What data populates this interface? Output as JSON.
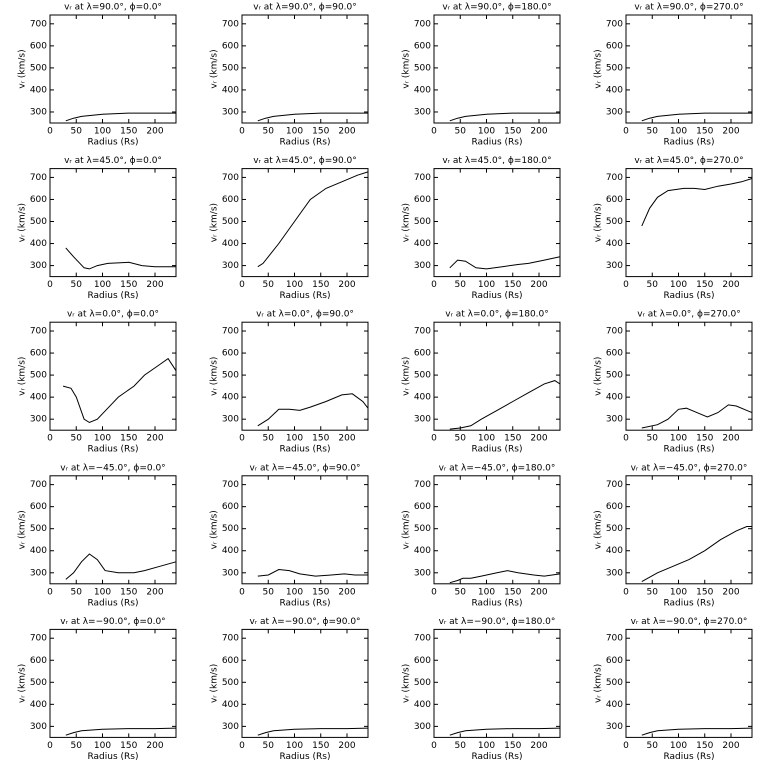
{
  "chart_data": [
    {
      "type": "line",
      "title": "vᵣ at λ=90.0°, ϕ=0.0°",
      "xlabel": "Radius (Rs)",
      "ylabel": "vᵣ (km/s)",
      "xlim": [
        0,
        240
      ],
      "ylim": [
        250,
        740
      ],
      "xticks": [
        0,
        50,
        100,
        150,
        200
      ],
      "yticks": [
        300,
        400,
        500,
        600,
        700
      ],
      "color": "#000000",
      "x": [
        30,
        45,
        60,
        100,
        150,
        200,
        240
      ],
      "values": [
        260,
        272,
        280,
        290,
        295,
        295,
        295
      ]
    },
    {
      "type": "line",
      "title": "vᵣ at λ=90.0°, ϕ=90.0°",
      "xlabel": "Radius (Rs)",
      "ylabel": "vᵣ (km/s)",
      "xlim": [
        0,
        240
      ],
      "ylim": [
        250,
        740
      ],
      "xticks": [
        0,
        50,
        100,
        150,
        200
      ],
      "yticks": [
        300,
        400,
        500,
        600,
        700
      ],
      "color": "#000000",
      "x": [
        30,
        45,
        60,
        100,
        150,
        200,
        240
      ],
      "values": [
        260,
        272,
        280,
        290,
        295,
        295,
        295
      ]
    },
    {
      "type": "line",
      "title": "vᵣ at λ=90.0°, ϕ=180.0°",
      "xlabel": "Radius (Rs)",
      "ylabel": "vᵣ (km/s)",
      "xlim": [
        0,
        240
      ],
      "ylim": [
        250,
        740
      ],
      "xticks": [
        0,
        50,
        100,
        150,
        200
      ],
      "yticks": [
        300,
        400,
        500,
        600,
        700
      ],
      "color": "#000000",
      "x": [
        30,
        45,
        60,
        100,
        150,
        200,
        240
      ],
      "values": [
        260,
        272,
        280,
        290,
        295,
        295,
        295
      ]
    },
    {
      "type": "line",
      "title": "vᵣ at λ=90.0°, ϕ=270.0°",
      "xlabel": "Radius (Rs)",
      "ylabel": "vᵣ (km/s)",
      "xlim": [
        0,
        240
      ],
      "ylim": [
        250,
        740
      ],
      "xticks": [
        0,
        50,
        100,
        150,
        200
      ],
      "yticks": [
        300,
        400,
        500,
        600,
        700
      ],
      "color": "#000000",
      "x": [
        30,
        45,
        60,
        100,
        150,
        200,
        240
      ],
      "values": [
        260,
        272,
        280,
        290,
        295,
        295,
        295
      ]
    },
    {
      "type": "line",
      "title": "vᵣ at λ=45.0°, ϕ=0.0°",
      "xlabel": "Radius (Rs)",
      "ylabel": "vᵣ (km/s)",
      "xlim": [
        0,
        240
      ],
      "ylim": [
        250,
        740
      ],
      "xticks": [
        0,
        50,
        100,
        150,
        200
      ],
      "yticks": [
        300,
        400,
        500,
        600,
        700
      ],
      "color": "#000000",
      "x": [
        30,
        45,
        65,
        75,
        90,
        110,
        150,
        175,
        200,
        240
      ],
      "values": [
        380,
        340,
        290,
        285,
        300,
        310,
        315,
        300,
        295,
        295
      ]
    },
    {
      "type": "line",
      "title": "vᵣ at λ=45.0°, ϕ=90.0°",
      "xlabel": "Radius (Rs)",
      "ylabel": "vᵣ (km/s)",
      "xlim": [
        0,
        240
      ],
      "ylim": [
        250,
        740
      ],
      "xticks": [
        0,
        50,
        100,
        150,
        200
      ],
      "yticks": [
        300,
        400,
        500,
        600,
        700
      ],
      "color": "#000000",
      "x": [
        30,
        40,
        70,
        100,
        130,
        160,
        190,
        220,
        240
      ],
      "values": [
        295,
        310,
        400,
        500,
        600,
        650,
        680,
        710,
        725
      ]
    },
    {
      "type": "line",
      "title": "vᵣ at λ=45.0°, ϕ=180.0°",
      "xlabel": "Radius (Rs)",
      "ylabel": "vᵣ (km/s)",
      "xlim": [
        0,
        240
      ],
      "ylim": [
        250,
        740
      ],
      "xticks": [
        0,
        50,
        100,
        150,
        200
      ],
      "yticks": [
        300,
        400,
        500,
        600,
        700
      ],
      "color": "#000000",
      "x": [
        30,
        45,
        60,
        80,
        100,
        130,
        160,
        180,
        210,
        240
      ],
      "values": [
        290,
        325,
        320,
        290,
        285,
        295,
        305,
        310,
        325,
        340
      ]
    },
    {
      "type": "line",
      "title": "vᵣ at λ=45.0°, ϕ=270.0°",
      "xlabel": "Radius (Rs)",
      "ylabel": "vᵣ (km/s)",
      "xlim": [
        0,
        240
      ],
      "ylim": [
        250,
        740
      ],
      "xticks": [
        0,
        50,
        100,
        150,
        200
      ],
      "yticks": [
        300,
        400,
        500,
        600,
        700
      ],
      "color": "#000000",
      "x": [
        30,
        45,
        60,
        80,
        110,
        130,
        150,
        175,
        200,
        220,
        240
      ],
      "values": [
        480,
        560,
        610,
        640,
        650,
        650,
        645,
        660,
        670,
        680,
        695
      ]
    },
    {
      "type": "line",
      "title": "vᵣ at λ=0.0°, ϕ=0.0°",
      "xlabel": "Radius (Rs)",
      "ylabel": "vᵣ (km/s)",
      "xlim": [
        0,
        240
      ],
      "ylim": [
        250,
        740
      ],
      "xticks": [
        0,
        50,
        100,
        150,
        200
      ],
      "yticks": [
        300,
        400,
        500,
        600,
        700
      ],
      "color": "#000000",
      "x": [
        25,
        40,
        50,
        65,
        75,
        90,
        110,
        130,
        160,
        180,
        210,
        225,
        240
      ],
      "values": [
        450,
        440,
        400,
        300,
        285,
        300,
        350,
        400,
        450,
        500,
        550,
        575,
        520
      ]
    },
    {
      "type": "line",
      "title": "vᵣ at λ=0.0°, ϕ=90.0°",
      "xlabel": "Radius (Rs)",
      "ylabel": "vᵣ (km/s)",
      "xlim": [
        0,
        240
      ],
      "ylim": [
        250,
        740
      ],
      "xticks": [
        0,
        50,
        100,
        150,
        200
      ],
      "yticks": [
        300,
        400,
        500,
        600,
        700
      ],
      "color": "#000000",
      "x": [
        30,
        50,
        70,
        90,
        110,
        130,
        160,
        190,
        210,
        230,
        240
      ],
      "values": [
        270,
        300,
        345,
        345,
        340,
        355,
        380,
        410,
        415,
        380,
        350
      ]
    },
    {
      "type": "line",
      "title": "vᵣ at λ=0.0°, ϕ=180.0°",
      "xlabel": "Radius (Rs)",
      "ylabel": "vᵣ (km/s)",
      "xlim": [
        0,
        240
      ],
      "ylim": [
        250,
        740
      ],
      "xticks": [
        0,
        50,
        100,
        150,
        200
      ],
      "yticks": [
        300,
        400,
        500,
        600,
        700
      ],
      "color": "#000000",
      "x": [
        30,
        50,
        70,
        90,
        120,
        150,
        180,
        210,
        230,
        240
      ],
      "values": [
        255,
        260,
        270,
        300,
        340,
        380,
        420,
        460,
        475,
        460
      ]
    },
    {
      "type": "line",
      "title": "vᵣ at λ=0.0°, ϕ=270.0°",
      "xlabel": "Radius (Rs)",
      "ylabel": "vᵣ (km/s)",
      "xlim": [
        0,
        240
      ],
      "ylim": [
        250,
        740
      ],
      "xticks": [
        0,
        50,
        100,
        150,
        200
      ],
      "yticks": [
        300,
        400,
        500,
        600,
        700
      ],
      "color": "#000000",
      "x": [
        30,
        60,
        80,
        100,
        115,
        135,
        155,
        175,
        195,
        210,
        230,
        240
      ],
      "values": [
        260,
        275,
        300,
        345,
        350,
        330,
        310,
        330,
        365,
        360,
        340,
        330
      ]
    },
    {
      "type": "line",
      "title": "vᵣ at λ=−45.0°, ϕ=0.0°",
      "xlabel": "Radius (Rs)",
      "ylabel": "vᵣ (km/s)",
      "xlim": [
        0,
        240
      ],
      "ylim": [
        250,
        740
      ],
      "xticks": [
        0,
        50,
        100,
        150,
        200
      ],
      "yticks": [
        300,
        400,
        500,
        600,
        700
      ],
      "color": "#000000",
      "x": [
        30,
        45,
        60,
        75,
        90,
        105,
        130,
        160,
        180,
        210,
        240
      ],
      "values": [
        270,
        300,
        350,
        385,
        360,
        310,
        300,
        300,
        310,
        330,
        350
      ]
    },
    {
      "type": "line",
      "title": "vᵣ at λ=−45.0°, ϕ=90.0°",
      "xlabel": "Radius (Rs)",
      "ylabel": "vᵣ (km/s)",
      "xlim": [
        0,
        240
      ],
      "ylim": [
        250,
        740
      ],
      "xticks": [
        0,
        50,
        100,
        150,
        200
      ],
      "yticks": [
        300,
        400,
        500,
        600,
        700
      ],
      "color": "#000000",
      "x": [
        30,
        50,
        70,
        90,
        110,
        140,
        170,
        195,
        215,
        240
      ],
      "values": [
        285,
        290,
        315,
        310,
        295,
        285,
        290,
        295,
        290,
        290
      ]
    },
    {
      "type": "line",
      "title": "vᵣ at λ=−45.0°, ϕ=180.0°",
      "xlabel": "Radius (Rs)",
      "ylabel": "vᵣ (km/s)",
      "xlim": [
        0,
        240
      ],
      "ylim": [
        250,
        740
      ],
      "xticks": [
        0,
        50,
        100,
        150,
        200
      ],
      "yticks": [
        300,
        400,
        500,
        600,
        700
      ],
      "color": "#000000",
      "x": [
        30,
        45,
        55,
        70,
        90,
        120,
        140,
        160,
        190,
        210,
        240
      ],
      "values": [
        255,
        265,
        275,
        275,
        285,
        300,
        310,
        300,
        290,
        285,
        295
      ]
    },
    {
      "type": "line",
      "title": "vᵣ at λ=−45.0°, ϕ=270.0°",
      "xlabel": "Radius (Rs)",
      "ylabel": "vᵣ (km/s)",
      "xlim": [
        0,
        240
      ],
      "ylim": [
        250,
        740
      ],
      "xticks": [
        0,
        50,
        100,
        150,
        200
      ],
      "yticks": [
        300,
        400,
        500,
        600,
        700
      ],
      "color": "#000000",
      "x": [
        30,
        60,
        90,
        120,
        150,
        180,
        210,
        230,
        240
      ],
      "values": [
        260,
        300,
        330,
        360,
        400,
        450,
        490,
        510,
        510
      ]
    },
    {
      "type": "line",
      "title": "vᵣ at λ=−90.0°, ϕ=0.0°",
      "xlabel": "Radius (Rs)",
      "ylabel": "vᵣ (km/s)",
      "xlim": [
        0,
        240
      ],
      "ylim": [
        250,
        740
      ],
      "xticks": [
        0,
        50,
        100,
        150,
        200
      ],
      "yticks": [
        300,
        400,
        500,
        600,
        700
      ],
      "color": "#000000",
      "x": [
        30,
        45,
        60,
        100,
        150,
        200,
        240
      ],
      "values": [
        260,
        272,
        280,
        287,
        290,
        290,
        292
      ]
    },
    {
      "type": "line",
      "title": "vᵣ at λ=−90.0°, ϕ=90.0°",
      "xlabel": "Radius (Rs)",
      "ylabel": "vᵣ (km/s)",
      "xlim": [
        0,
        240
      ],
      "ylim": [
        250,
        740
      ],
      "xticks": [
        0,
        50,
        100,
        150,
        200
      ],
      "yticks": [
        300,
        400,
        500,
        600,
        700
      ],
      "color": "#000000",
      "x": [
        30,
        45,
        60,
        100,
        150,
        200,
        240
      ],
      "values": [
        260,
        272,
        280,
        287,
        290,
        290,
        292
      ]
    },
    {
      "type": "line",
      "title": "vᵣ at λ=−90.0°, ϕ=180.0°",
      "xlabel": "Radius (Rs)",
      "ylabel": "vᵣ (km/s)",
      "xlim": [
        0,
        240
      ],
      "ylim": [
        250,
        740
      ],
      "xticks": [
        0,
        50,
        100,
        150,
        200
      ],
      "yticks": [
        300,
        400,
        500,
        600,
        700
      ],
      "color": "#000000",
      "x": [
        30,
        45,
        60,
        100,
        150,
        200,
        240
      ],
      "values": [
        260,
        272,
        280,
        287,
        290,
        290,
        292
      ]
    },
    {
      "type": "line",
      "title": "vᵣ at λ=−90.0°, ϕ=270.0°",
      "xlabel": "Radius (Rs)",
      "ylabel": "vᵣ (km/s)",
      "xlim": [
        0,
        240
      ],
      "ylim": [
        250,
        740
      ],
      "xticks": [
        0,
        50,
        100,
        150,
        200
      ],
      "yticks": [
        300,
        400,
        500,
        600,
        700
      ],
      "color": "#000000",
      "x": [
        30,
        45,
        60,
        100,
        150,
        200,
        240
      ],
      "values": [
        260,
        272,
        280,
        287,
        290,
        290,
        292
      ]
    }
  ]
}
